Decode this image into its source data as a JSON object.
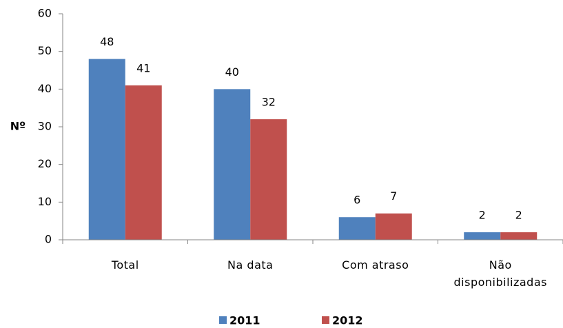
{
  "chart_data": {
    "type": "bar",
    "y_label": "Nº",
    "categories": [
      "Total",
      "Na data",
      "Com atraso",
      "Não disponibilizadas"
    ],
    "series": [
      {
        "name": "2011",
        "color": "#4f81bd",
        "values": [
          48,
          40,
          6,
          2
        ]
      },
      {
        "name": "2012",
        "color": "#c0504d",
        "values": [
          41,
          32,
          7,
          2
        ]
      }
    ],
    "ylim": [
      0,
      60
    ],
    "yticks": [
      0,
      10,
      20,
      30,
      40,
      50,
      60
    ],
    "legend": "bottom",
    "grid": false
  }
}
